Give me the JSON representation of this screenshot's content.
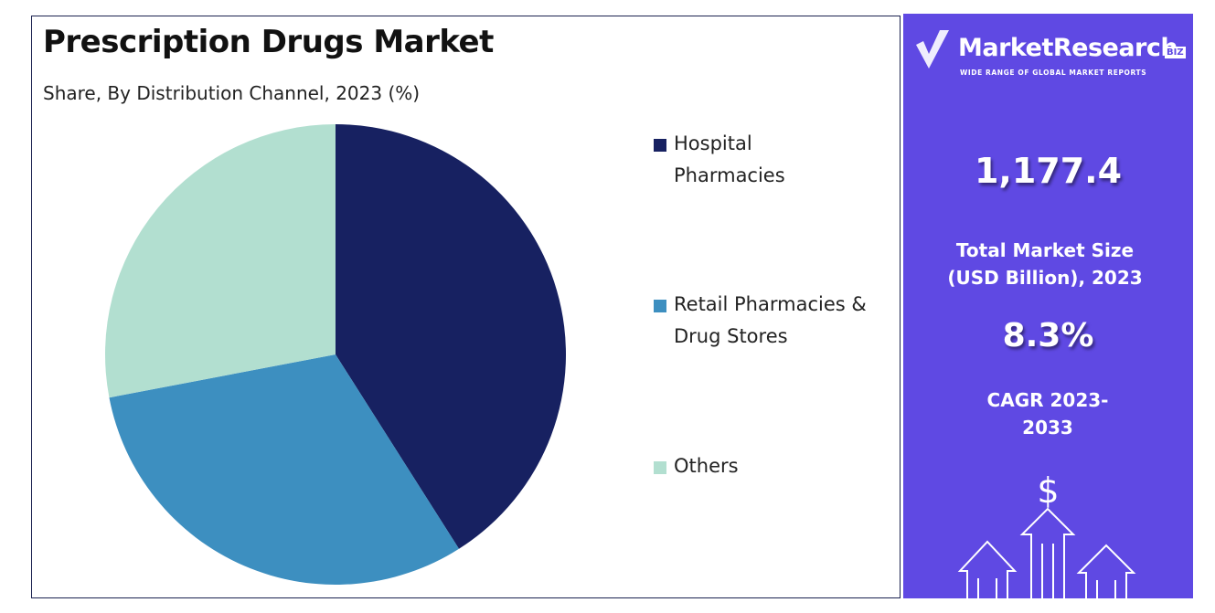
{
  "chart_data": {
    "type": "pie",
    "title": "Prescription Drugs Market",
    "subtitle": "Share, By Distribution Channel, 2023 (%)",
    "categories": [
      "Hospital Pharmacies",
      "Retail Pharmacies & Drug Stores",
      "Others"
    ],
    "values": [
      41,
      31,
      28
    ],
    "colors": [
      "#172161",
      "#3d8fc0",
      "#b2dfd0"
    ]
  },
  "side_panel": {
    "brand": "MarketResearch",
    "brand_badge": "BIZ",
    "tagline": "WIDE RANGE OF GLOBAL MARKET REPORTS",
    "market_size": "1,177.4",
    "market_size_label": "Total Market Size (USD Billion), 2023",
    "cagr": "8.3%",
    "cagr_label": "CAGR 2023-2033",
    "icon_symbol": "$"
  }
}
